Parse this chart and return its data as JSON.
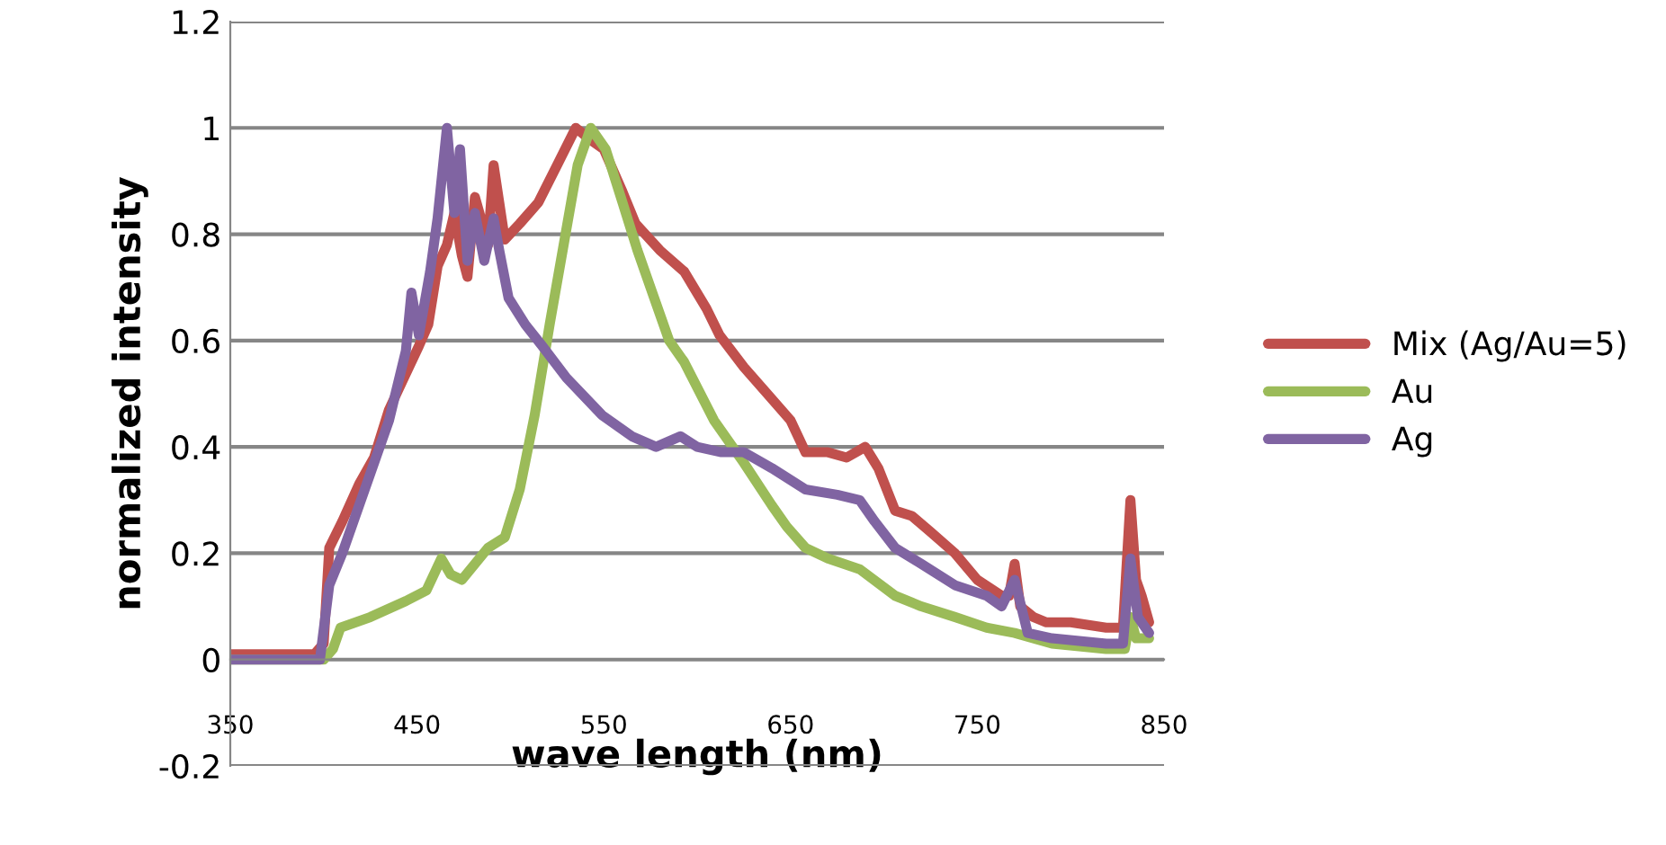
{
  "chart_data": {
    "type": "line",
    "xlabel": "wave length (nm)",
    "ylabel": "normalized intensity",
    "xlim": [
      350,
      850
    ],
    "xticks": [
      350,
      450,
      550,
      650,
      750,
      850
    ],
    "ylim": [
      -0.2,
      1.2
    ],
    "yticks": [
      -0.2,
      0,
      0.2,
      0.4,
      0.6,
      0.8,
      1,
      1.2
    ],
    "grid": "y",
    "legend": "right",
    "marker": "none",
    "line_style": "solid",
    "series": [
      {
        "name": "Mix (Ag/Au=5)",
        "color": "#c0504d",
        "x": [
          350,
          395,
          400,
          403,
          410,
          419,
          427,
          435,
          443,
          451,
          456,
          461,
          466,
          470,
          474,
          477,
          481,
          485,
          488,
          491,
          494,
          497,
          505,
          515,
          525,
          535,
          542,
          550,
          560,
          567,
          580,
          593,
          605,
          612,
          625,
          640,
          650,
          658,
          670,
          680,
          690,
          697,
          706,
          715,
          725,
          738,
          750,
          763,
          767,
          770,
          773,
          780,
          787,
          800,
          819,
          828,
          832,
          835,
          838,
          842
        ],
        "values": [
          0.01,
          0.01,
          0.03,
          0.21,
          0.26,
          0.33,
          0.38,
          0.47,
          0.53,
          0.59,
          0.63,
          0.74,
          0.78,
          0.84,
          0.76,
          0.72,
          0.87,
          0.82,
          0.78,
          0.93,
          0.86,
          0.79,
          0.82,
          0.86,
          0.93,
          1.0,
          0.98,
          0.96,
          0.88,
          0.82,
          0.77,
          0.73,
          0.66,
          0.61,
          0.55,
          0.49,
          0.45,
          0.39,
          0.39,
          0.38,
          0.4,
          0.36,
          0.28,
          0.27,
          0.24,
          0.2,
          0.15,
          0.12,
          0.12,
          0.18,
          0.1,
          0.08,
          0.07,
          0.07,
          0.06,
          0.06,
          0.3,
          0.15,
          0.12,
          0.07
        ]
      },
      {
        "name": "Au",
        "color": "#9bbb59",
        "x": [
          350,
          400,
          405,
          409,
          425,
          444,
          455,
          463,
          468,
          474,
          481,
          488,
          497,
          505,
          513,
          521,
          529,
          536,
          543,
          551,
          560,
          568,
          577,
          585,
          593,
          609,
          625,
          640,
          648,
          658,
          670,
          687,
          706,
          720,
          738,
          755,
          770,
          790,
          819,
          829,
          832,
          835,
          842
        ],
        "values": [
          0.0,
          0.0,
          0.02,
          0.06,
          0.08,
          0.11,
          0.13,
          0.19,
          0.16,
          0.15,
          0.18,
          0.21,
          0.23,
          0.32,
          0.46,
          0.63,
          0.79,
          0.93,
          1.0,
          0.96,
          0.86,
          0.77,
          0.68,
          0.6,
          0.56,
          0.45,
          0.37,
          0.29,
          0.25,
          0.21,
          0.19,
          0.17,
          0.12,
          0.1,
          0.08,
          0.06,
          0.05,
          0.03,
          0.02,
          0.02,
          0.08,
          0.04,
          0.04
        ]
      },
      {
        "name": "Ag",
        "color": "#8064a2",
        "x": [
          350,
          398,
          403,
          410,
          419,
          427,
          435,
          444,
          447,
          451,
          457,
          461,
          466,
          470,
          473,
          477,
          481,
          486,
          491,
          494,
          499,
          508,
          517,
          530,
          549,
          565,
          578,
          591,
          600,
          613,
          625,
          640,
          658,
          675,
          687,
          695,
          706,
          720,
          738,
          755,
          763,
          770,
          777,
          790,
          819,
          828,
          832,
          836,
          842
        ],
        "values": [
          0.0,
          0.0,
          0.14,
          0.2,
          0.29,
          0.37,
          0.45,
          0.58,
          0.69,
          0.61,
          0.73,
          0.83,
          1.0,
          0.84,
          0.96,
          0.75,
          0.84,
          0.75,
          0.83,
          0.77,
          0.68,
          0.63,
          0.59,
          0.53,
          0.46,
          0.42,
          0.4,
          0.42,
          0.4,
          0.39,
          0.39,
          0.36,
          0.32,
          0.31,
          0.3,
          0.26,
          0.21,
          0.18,
          0.14,
          0.12,
          0.1,
          0.15,
          0.05,
          0.04,
          0.03,
          0.03,
          0.19,
          0.08,
          0.05
        ]
      }
    ]
  }
}
